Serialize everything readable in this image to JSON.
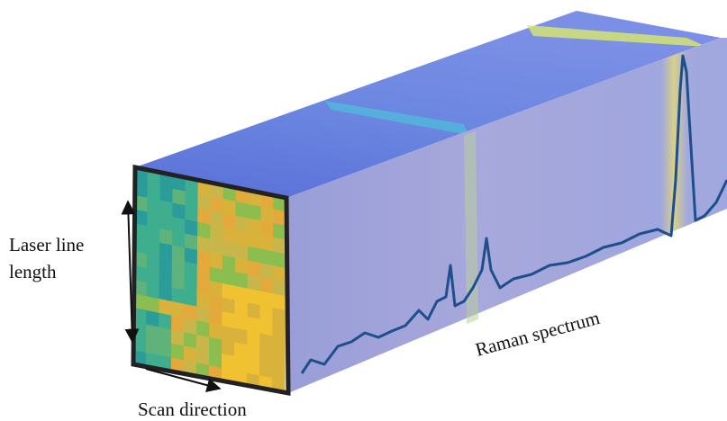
{
  "labels": {
    "laser_line": [
      "Laser line",
      "length"
    ],
    "raman_spectrum": "Raman spectrum",
    "scan_direction": "Scan direction"
  }
}
